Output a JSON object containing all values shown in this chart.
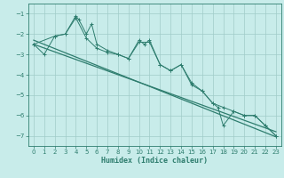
{
  "xlabel": "Humidex (Indice chaleur)",
  "bg_color": "#c8ecea",
  "line_color": "#2e7d6e",
  "grid_color": "#a0ccc8",
  "xlim": [
    -0.5,
    23.5
  ],
  "ylim": [
    -7.5,
    -0.5
  ],
  "yticks": [
    -7,
    -6,
    -5,
    -4,
    -3,
    -2,
    -1
  ],
  "xticks": [
    0,
    1,
    2,
    3,
    4,
    5,
    6,
    7,
    8,
    9,
    10,
    11,
    12,
    13,
    14,
    15,
    16,
    17,
    18,
    19,
    20,
    21,
    22,
    23
  ],
  "series1_x": [
    0,
    1,
    2,
    3,
    4,
    4.3,
    5,
    5.5,
    6,
    7,
    8,
    9,
    10,
    10.5,
    11,
    12,
    13,
    14,
    15,
    16,
    17,
    17.5,
    18,
    19,
    20,
    21,
    22,
    23
  ],
  "series1_y": [
    -2.5,
    -3.0,
    -2.1,
    -2.0,
    -1.1,
    -1.3,
    -2.0,
    -1.5,
    -2.5,
    -2.8,
    -3.0,
    -3.2,
    -2.3,
    -2.5,
    -2.3,
    -3.5,
    -3.8,
    -3.5,
    -4.4,
    -4.8,
    -5.4,
    -5.6,
    -6.5,
    -5.8,
    -6.0,
    -6.0,
    -6.5,
    -7.0
  ],
  "series2_x": [
    0,
    2,
    3,
    4,
    5,
    6,
    7,
    8,
    9,
    10,
    11,
    12,
    13,
    14,
    15,
    16,
    17,
    18,
    19,
    20,
    21,
    22,
    23
  ],
  "series2_y": [
    -2.5,
    -2.1,
    -2.0,
    -1.2,
    -2.2,
    -2.7,
    -2.9,
    -3.0,
    -3.2,
    -2.4,
    -2.4,
    -3.5,
    -3.8,
    -3.5,
    -4.5,
    -4.8,
    -5.4,
    -5.6,
    -5.8,
    -6.0,
    -6.0,
    -6.5,
    -7.0
  ],
  "trend1_x": [
    0,
    23
  ],
  "trend1_y": [
    -2.3,
    -7.05
  ],
  "trend2_x": [
    0,
    23
  ],
  "trend2_y": [
    -2.5,
    -6.8
  ]
}
